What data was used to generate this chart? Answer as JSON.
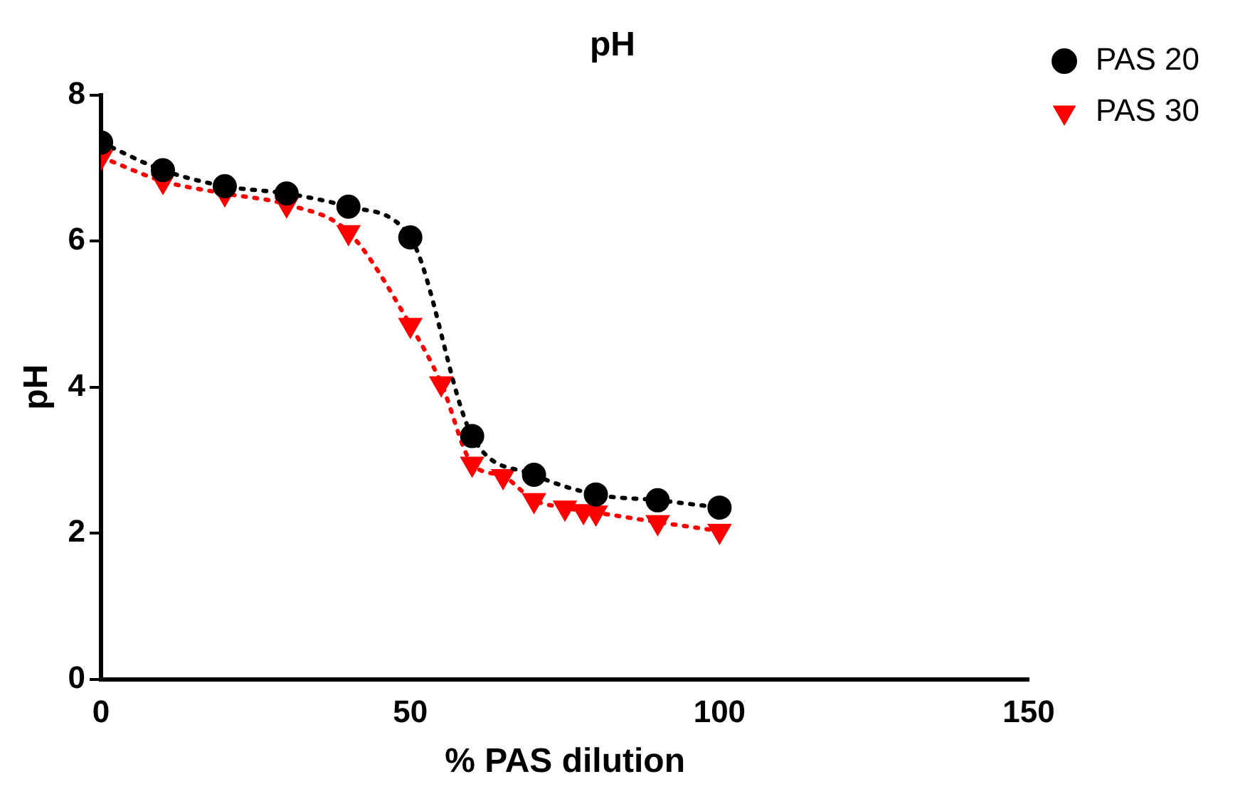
{
  "chart_data": {
    "type": "line",
    "title": "pH",
    "xlabel": "% PAS dilution",
    "ylabel": "pH",
    "xlim": [
      0,
      150
    ],
    "xticks": [
      0,
      50,
      100,
      150
    ],
    "ylim": [
      0,
      8
    ],
    "yticks": [
      0,
      2,
      4,
      6,
      8
    ],
    "grid": false,
    "legend": "top right",
    "line_style": "dotted",
    "series": [
      {
        "name": "PAS 20",
        "color": "#000000",
        "marker": "circle",
        "x": [
          0,
          10,
          20,
          30,
          40,
          50,
          60,
          70,
          80,
          90,
          100
        ],
        "values": [
          7.35,
          6.97,
          6.75,
          6.65,
          6.47,
          6.05,
          3.33,
          2.8,
          2.53,
          2.45,
          2.35
        ]
      },
      {
        "name": "PAS 30",
        "color": "#ff0000",
        "marker": "triangle",
        "x": [
          0,
          10,
          20,
          30,
          40,
          50,
          55,
          60,
          65,
          70,
          75,
          78,
          80,
          90,
          100
        ],
        "values": [
          7.15,
          6.82,
          6.65,
          6.5,
          6.12,
          4.85,
          4.05,
          2.95,
          2.78,
          2.45,
          2.35,
          2.3,
          2.28,
          2.15,
          2.03
        ]
      }
    ]
  }
}
